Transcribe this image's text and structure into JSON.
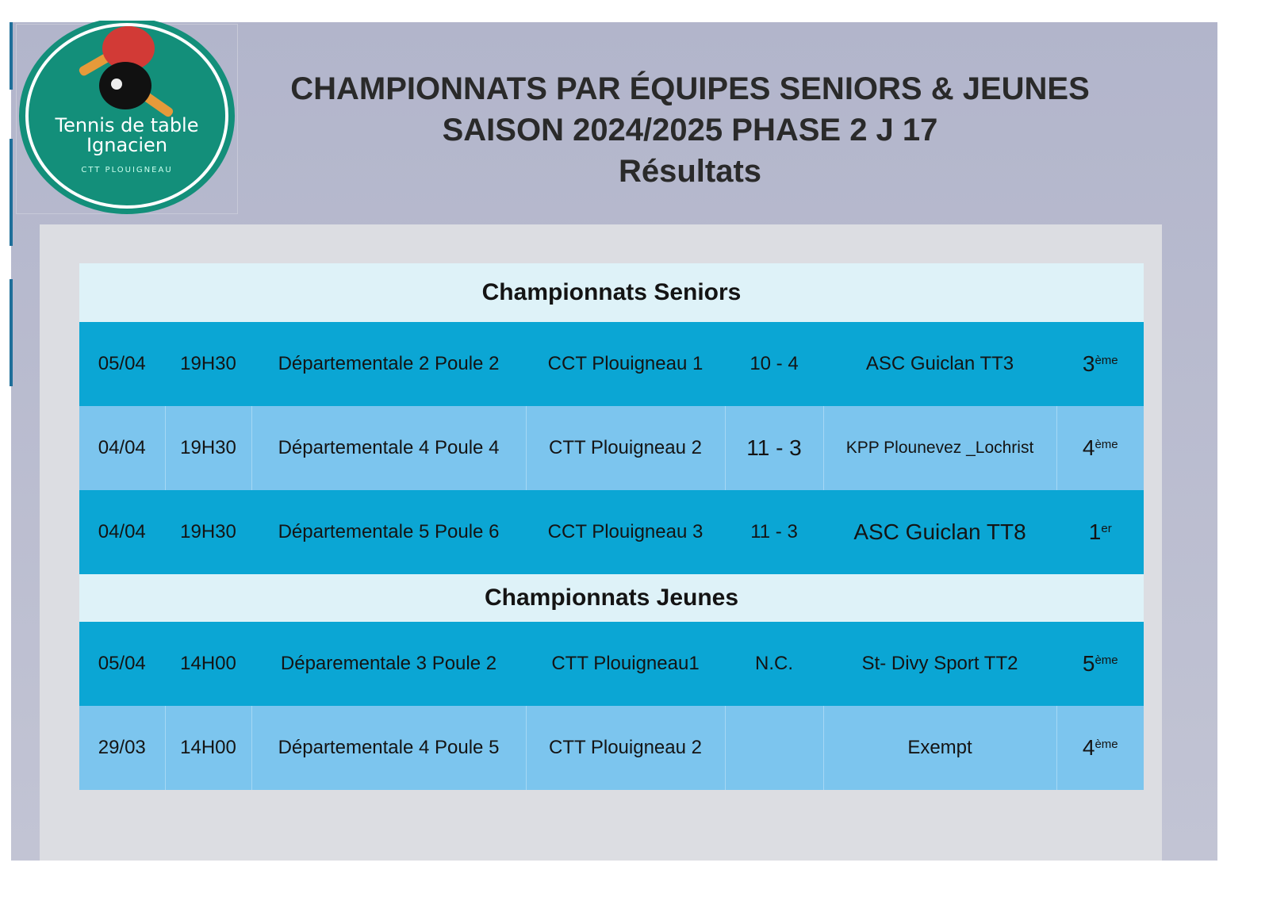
{
  "logo": {
    "line1": "Tennis de table",
    "line2": "Ignacien",
    "line3": "CTT PLOUIGNEAU"
  },
  "header": {
    "line1": "CHAMPIONNATS PAR ÉQUIPES SENIORS & JEUNES",
    "line2": "SAISON 2024/2025 PHASE 2 J 17",
    "line3": "Résultats"
  },
  "seniors": {
    "title": "Championnats Seniors",
    "rows": [
      {
        "date": "05/04",
        "time": "19H30",
        "division": "Départementale 2 Poule 2",
        "team": "CCT Plouigneau 1",
        "score": "10 - 4",
        "opponent": "ASC Guiclan TT3",
        "rank": "3",
        "rank_suffix": "ème"
      },
      {
        "date": "04/04",
        "time": "19H30",
        "division": "Départementale 4 Poule 4",
        "team": "CTT Plouigneau 2",
        "score": "11 - 3",
        "opponent": "KPP Plounevez _Lochrist",
        "rank": "4",
        "rank_suffix": "ème"
      },
      {
        "date": "04/04",
        "time": "19H30",
        "division": "Départementale 5 Poule 6",
        "team": "CCT Plouigneau 3",
        "score": "11 - 3",
        "opponent": "ASC Guiclan TT8",
        "rank": "1",
        "rank_suffix": "er"
      }
    ]
  },
  "jeunes": {
    "title": "Championnats Jeunes",
    "rows": [
      {
        "date": "05/04",
        "time": "14H00",
        "division": "Déparementale 3 Poule 2",
        "team": "CTT Plouigneau1",
        "score": "N.C.",
        "opponent": "St- Divy Sport TT2",
        "rank": "5",
        "rank_suffix": "ème"
      },
      {
        "date": "29/03",
        "time": "14H00",
        "division": "Départementale 4 Poule 5",
        "team": "CTT Plouigneau 2",
        "score": "",
        "opponent": "Exempt",
        "rank": "4",
        "rank_suffix": "ème"
      }
    ]
  },
  "colors": {
    "row_dark": "#0ba6d4",
    "row_light": "#7cc5ee",
    "section": "#def2f8",
    "logo_green": "#138f7a"
  }
}
